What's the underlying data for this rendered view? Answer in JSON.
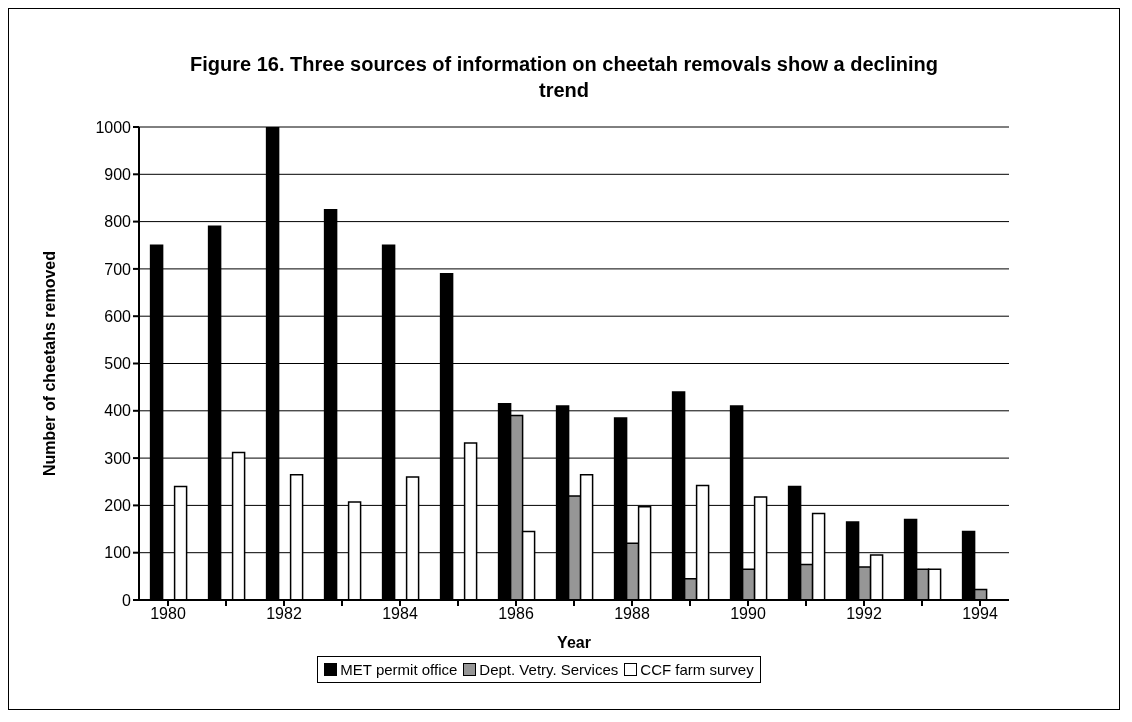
{
  "chart_data": {
    "type": "bar",
    "title": "Figure 16.  Three sources of information on cheetah removals show a declining trend",
    "xlabel": "Year",
    "ylabel": "Number of cheetahs removed",
    "categories": [
      "1980",
      null,
      "1982",
      null,
      "1984",
      null,
      "1986",
      null,
      "1988",
      null,
      "1990",
      null,
      "1992",
      null,
      "1994"
    ],
    "series": [
      {
        "name": "MET permit office",
        "color": "#000000",
        "values": [
          750,
          790,
          1000,
          825,
          750,
          690,
          415,
          410,
          385,
          440,
          410,
          240,
          165,
          170,
          145
        ]
      },
      {
        "name": "Dept. Vetry. Services",
        "color": "#969696",
        "values": [
          0,
          0,
          0,
          0,
          0,
          0,
          390,
          220,
          120,
          45,
          65,
          75,
          70,
          65,
          22
        ]
      },
      {
        "name": "CCF farm survey",
        "color": "#ffffff",
        "values": [
          240,
          312,
          265,
          207,
          260,
          332,
          145,
          265,
          197,
          242,
          218,
          183,
          95,
          65,
          0
        ]
      }
    ],
    "ylim": [
      0,
      1000
    ],
    "yticks": [
      0,
      100,
      200,
      300,
      400,
      500,
      600,
      700,
      800,
      900,
      1000
    ],
    "grid": "y",
    "legend": "bottom"
  }
}
